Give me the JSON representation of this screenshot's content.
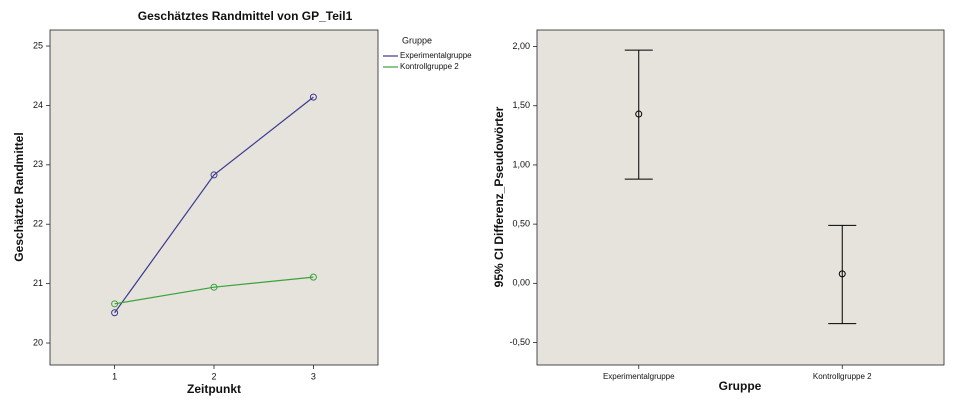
{
  "chart_data": [
    {
      "type": "line",
      "title": "Geschätztes Randmittel von GP_Teil1",
      "x_label": "Zeitpunkt",
      "y_label": "Geschätzte Randmittel",
      "legend_title": "Gruppe",
      "x": [
        1,
        2,
        3
      ],
      "xlim": [
        0.35,
        3.65
      ],
      "xticks": [
        1,
        2,
        3
      ],
      "ylim": [
        19.63,
        25.27
      ],
      "yticks": [
        20,
        21,
        22,
        23,
        24,
        25
      ],
      "series": [
        {
          "name": "Experimentalgruppe",
          "color": "#3c3a8f",
          "values": [
            20.51,
            22.83,
            24.14
          ]
        },
        {
          "name": "Kontrollgruppe 2",
          "color": "#3aa33a",
          "values": [
            20.66,
            20.94,
            21.11
          ]
        }
      ]
    },
    {
      "type": "errorbar",
      "x_label": "Gruppe",
      "y_label": "95% CI Differenz_Pseudowörter",
      "categories": [
        "Experimentalgruppe",
        "Kontrollgruppe 2"
      ],
      "values": [
        1.43,
        0.08
      ],
      "lower": [
        0.88,
        -0.34
      ],
      "upper": [
        1.97,
        0.49
      ],
      "color": "#000000",
      "ylim": [
        -0.69,
        2.14
      ],
      "yticks": [
        {
          "value": -0.5,
          "label": "-0,50"
        },
        {
          "value": 0,
          "label": "0,00"
        },
        {
          "value": 0.5,
          "label": "0,50"
        },
        {
          "value": 1,
          "label": "1,00"
        },
        {
          "value": 1.5,
          "label": "1,50"
        },
        {
          "value": 2,
          "label": "2,00"
        }
      ]
    }
  ]
}
